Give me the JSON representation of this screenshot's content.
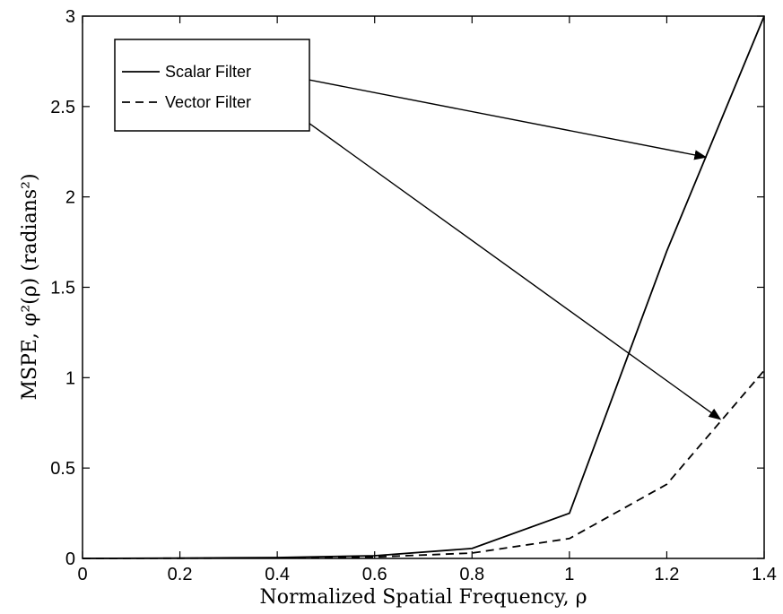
{
  "chart_data": {
    "type": "line",
    "title": "",
    "xlabel": "Normalized Spatial Frequency, ρ",
    "ylabel": "MSPE, φ²(ρ)  (radians²)",
    "xlim": [
      0,
      1.4
    ],
    "ylim": [
      0,
      3
    ],
    "xticks": [
      "0",
      "0.2",
      "0.4",
      "0.6",
      "0.8",
      "1",
      "1.2",
      "1.4"
    ],
    "yticks": [
      "0",
      "0.5",
      "1",
      "1.5",
      "2",
      "2.5",
      "3"
    ],
    "grid": false,
    "legend_position": "top-left",
    "x": [
      0,
      0.2,
      0.4,
      0.6,
      0.8,
      1.0,
      1.2,
      1.4
    ],
    "series": [
      {
        "name": "Scalar Filter",
        "style": "solid",
        "values": [
          0,
          0.002,
          0.005,
          0.015,
          0.055,
          0.25,
          1.7,
          3.0
        ]
      },
      {
        "name": "Vector Filter",
        "style": "dashed",
        "values": [
          0,
          0.001,
          0.003,
          0.008,
          0.03,
          0.11,
          0.41,
          1.04
        ]
      }
    ],
    "annotations": [
      {
        "from_series": "Scalar Filter",
        "points_to": [
          1.28,
          2.22
        ]
      },
      {
        "from_series": "Vector Filter",
        "points_to": [
          1.31,
          0.77
        ]
      }
    ],
    "colors": {
      "line": "#000000",
      "background": "#ffffff"
    }
  }
}
